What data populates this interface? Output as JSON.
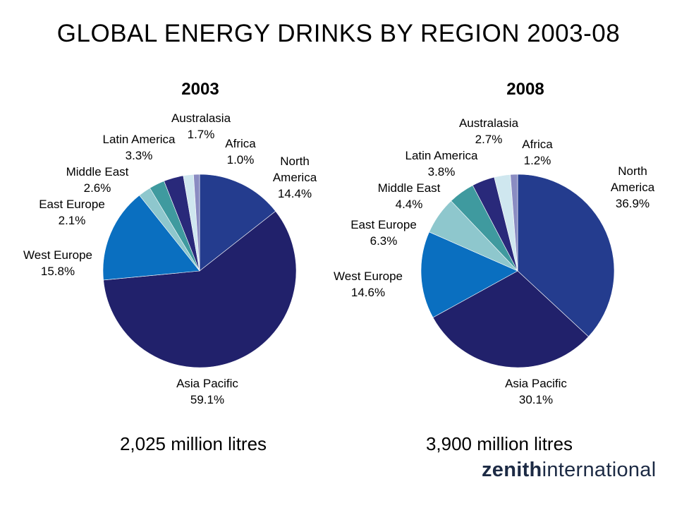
{
  "title": "GLOBAL ENERGY DRINKS BY REGION 2003-08",
  "logo": {
    "bold": "zenith",
    "regular": "international"
  },
  "colors": {
    "North America": "#243c8e",
    "Asia Pacific": "#21216b",
    "West Europe": "#0a6fc0",
    "East Europe": "#8ec7cd",
    "Middle East": "#3f9a9f",
    "Latin America": "#29297a",
    "Australasia": "#cfe7ef",
    "Africa": "#8a8cc2"
  },
  "chart_data": [
    {
      "type": "pie",
      "title": "2003",
      "total_label": "2,025 million litres",
      "slices": [
        {
          "name": "North America",
          "value": 14.4,
          "label": "14.4%"
        },
        {
          "name": "Asia Pacific",
          "value": 59.1,
          "label": "59.1%"
        },
        {
          "name": "West Europe",
          "value": 15.8,
          "label": "15.8%"
        },
        {
          "name": "East Europe",
          "value": 2.1,
          "label": "2.1%"
        },
        {
          "name": "Middle East",
          "value": 2.6,
          "label": "2.6%"
        },
        {
          "name": "Latin America",
          "value": 3.3,
          "label": "3.3%"
        },
        {
          "name": "Australasia",
          "value": 1.7,
          "label": "1.7%"
        },
        {
          "name": "Africa",
          "value": 1.0,
          "label": "1.0%"
        }
      ]
    },
    {
      "type": "pie",
      "title": "2008",
      "total_label": "3,900 million litres",
      "slices": [
        {
          "name": "North America",
          "value": 36.9,
          "label": "36.9%"
        },
        {
          "name": "Asia Pacific",
          "value": 30.1,
          "label": "30.1%"
        },
        {
          "name": "West Europe",
          "value": 14.6,
          "label": "14.6%"
        },
        {
          "name": "East Europe",
          "value": 6.3,
          "label": "6.3%"
        },
        {
          "name": "Middle East",
          "value": 4.4,
          "label": "4.4%"
        },
        {
          "name": "Latin America",
          "value": 3.8,
          "label": "3.8%"
        },
        {
          "name": "Australasia",
          "value": 2.7,
          "label": "2.7%"
        },
        {
          "name": "Africa",
          "value": 1.2,
          "label": "1.2%"
        }
      ]
    }
  ]
}
